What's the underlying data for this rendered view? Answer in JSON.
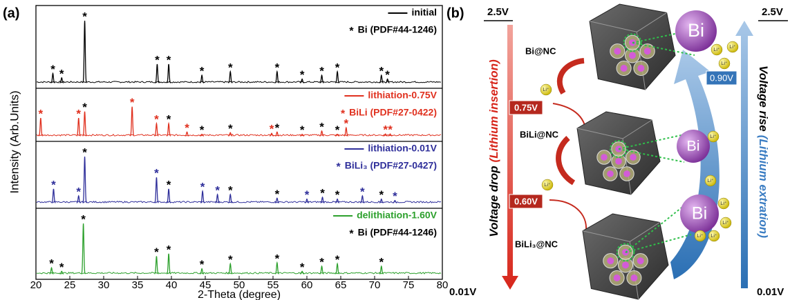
{
  "panel_a_label": "(a)",
  "chart_data": {
    "type": "xrd",
    "xlabel": "2-Theta (degree)",
    "ylabel": "Intensity (Arb.Units)",
    "xlim": [
      20,
      80
    ],
    "xticks": [
      20,
      25,
      30,
      35,
      40,
      45,
      50,
      55,
      60,
      65,
      70,
      75,
      80
    ],
    "marker": "*",
    "series": [
      {
        "name": "initial",
        "color": "#000000",
        "phase": "Bi (PDF#44-1246)",
        "phase_color": "#000000",
        "x": [
          22.5,
          23.8,
          27.2,
          37.9,
          39.6,
          44.5,
          48.7,
          55.6,
          59.3,
          62.2,
          64.5,
          71.0,
          71.9
        ],
        "values": [
          15,
          8,
          100,
          30,
          30,
          12,
          18,
          18,
          6,
          12,
          18,
          12,
          6
        ],
        "marker_colors": [
          "#000000",
          "#000000",
          "#000000",
          "#000000",
          "#000000",
          "#000000",
          "#000000",
          "#000000",
          "#000000",
          "#000000",
          "#000000",
          "#000000",
          "#000000"
        ]
      },
      {
        "name": "lithiation-0.75V",
        "color": "#e0301e",
        "phase": "BiLi (PDF#27-0422)",
        "phase_color": "#e0301e",
        "x": [
          20.7,
          26.3,
          27.2,
          34.2,
          37.8,
          39.6,
          42.3,
          44.5,
          48.7,
          54.8,
          55.6,
          59.3,
          62.2,
          64.5,
          65.8,
          71.6,
          72.3
        ],
        "values": [
          55,
          55,
          75,
          90,
          38,
          38,
          12,
          5,
          10,
          8,
          12,
          5,
          15,
          5,
          25,
          6,
          6
        ],
        "marker_colors": [
          "#e0301e",
          "#e0301e",
          "#000000",
          "#e0301e",
          "#e0301e",
          "#000000",
          "#e0301e",
          "#000000",
          "#000000",
          "#e0301e",
          "#000000",
          "#000000",
          "#000000",
          "#000000",
          "#e0301e",
          "#e0301e",
          "#e0301e"
        ]
      },
      {
        "name": "lithiation-0.01V",
        "color": "#2e2e9a",
        "phase": "BiLi₃ (PDF#27-0427)",
        "phase_color": "#2e2e9a",
        "x": [
          22.6,
          26.3,
          27.2,
          37.8,
          39.6,
          44.6,
          46.8,
          48.7,
          55.6,
          60.0,
          62.3,
          64.5,
          68.2,
          71.0,
          73.0
        ],
        "values": [
          30,
          15,
          100,
          55,
          30,
          25,
          18,
          18,
          10,
          8,
          12,
          8,
          15,
          8,
          5
        ],
        "marker_colors": [
          "#2e2e9a",
          "#2e2e9a",
          "#000000",
          "#2e2e9a",
          "#000000",
          "#2e2e9a",
          "#2e2e9a",
          "#000000",
          "#000000",
          "#2e2e9a",
          "#000000",
          "#000000",
          "#2e2e9a",
          "#000000",
          "#2e2e9a"
        ]
      },
      {
        "name": "delithiation-1.60V",
        "color": "#2ca02c",
        "phase": "Bi (PDF#44-1246)",
        "phase_color": "#000000",
        "x": [
          22.3,
          23.8,
          27.0,
          37.8,
          39.6,
          44.5,
          48.7,
          55.6,
          59.3,
          62.2,
          64.5,
          71.0
        ],
        "values": [
          12,
          5,
          100,
          35,
          40,
          10,
          20,
          22,
          5,
          15,
          20,
          15
        ],
        "marker_colors": [
          "#000000",
          "#000000",
          "#000000",
          "#000000",
          "#000000",
          "#000000",
          "#000000",
          "#000000",
          "#000000",
          "#000000",
          "#000000",
          "#000000"
        ]
      }
    ]
  },
  "diagram": {
    "label": "(b)",
    "top_voltage": "2.5V",
    "bottom_voltage": "0.01V",
    "left_title": "Voltage drop",
    "left_subtitle": "(Lithium insertion)",
    "right_title": "Voltage rise",
    "right_subtitle": "(Lithium extration)",
    "states": [
      "Bi@NC",
      "BiLi@NC",
      "BiLi₃@NC"
    ],
    "step_voltages": [
      "0.75V",
      "0.60V"
    ],
    "return_voltage": "0.90V",
    "bi": "Bi",
    "li": "Li⁺"
  }
}
